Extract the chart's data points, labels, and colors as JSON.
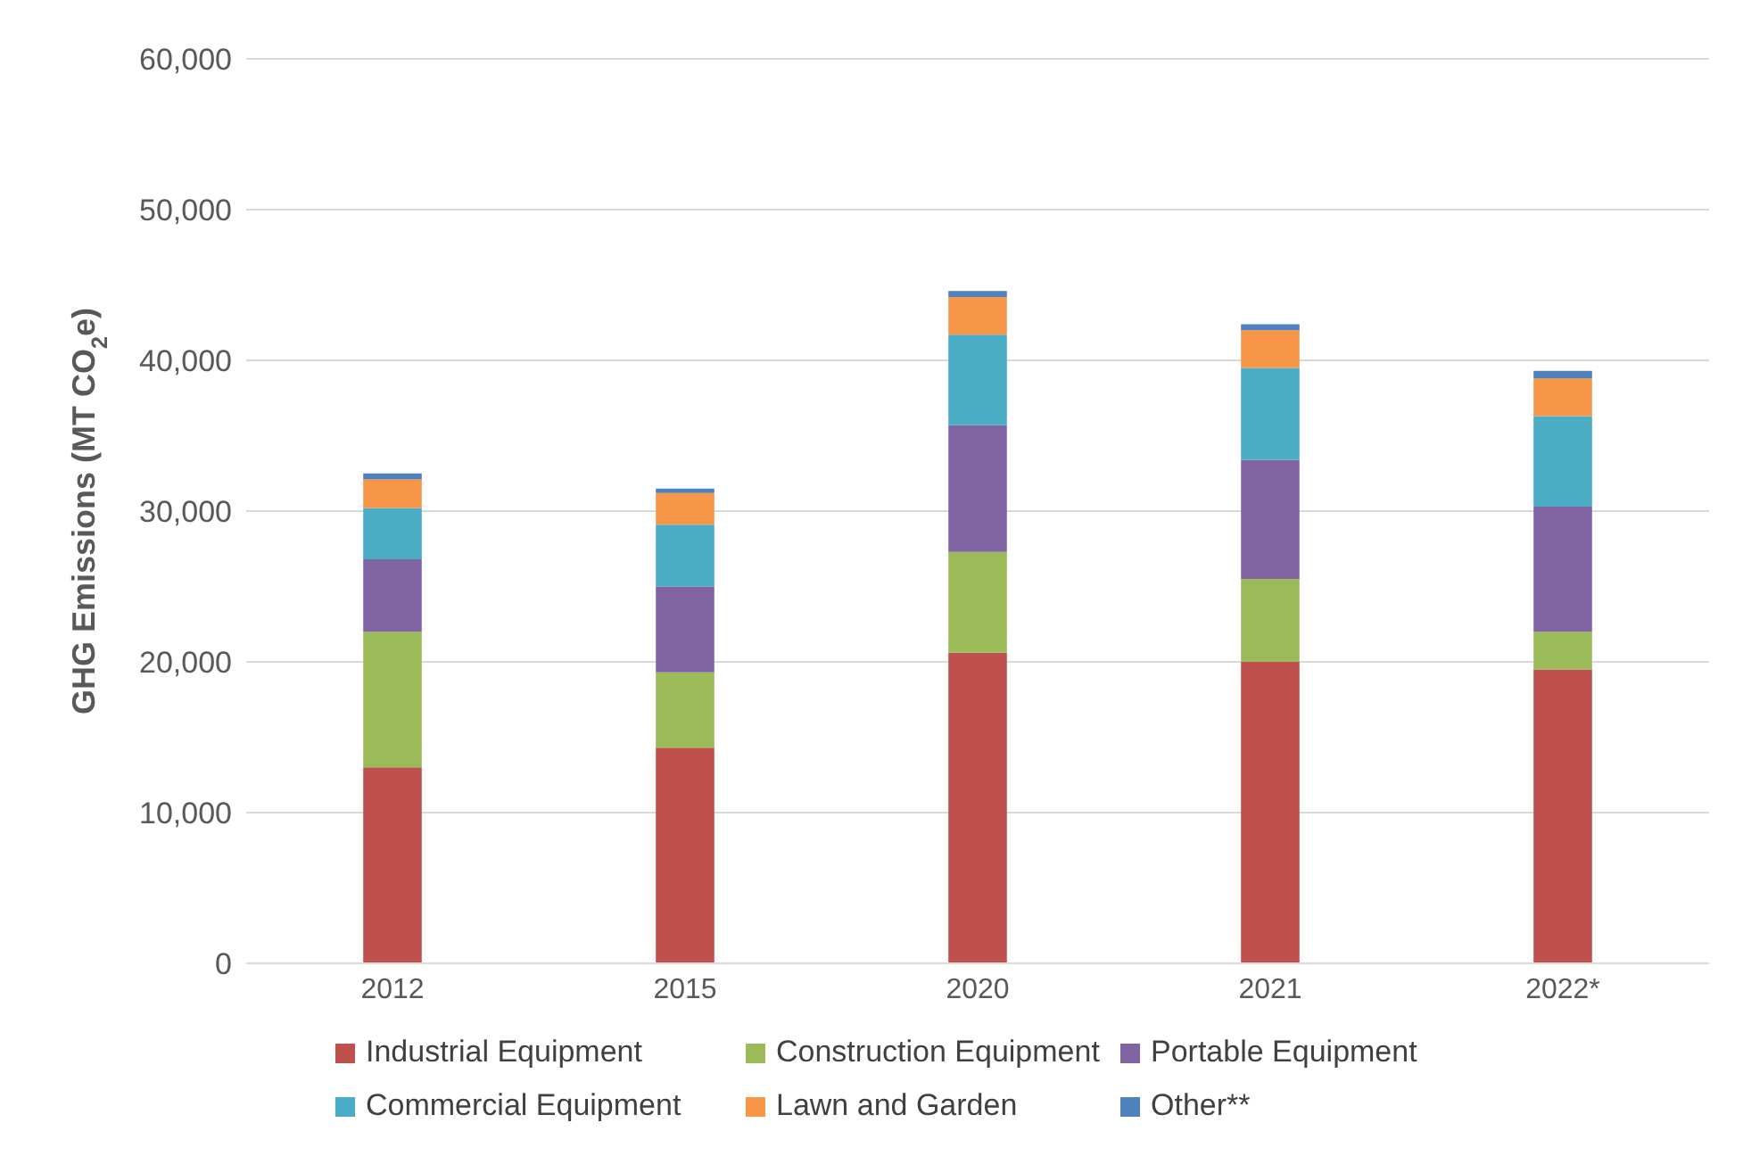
{
  "chart_data": {
    "type": "bar",
    "stacked": true,
    "ylabel": "GHG Emissions (MT CO$_{2}$e)",
    "categories": [
      "2012",
      "2015",
      "2020",
      "2021",
      "2022*"
    ],
    "series": [
      {
        "name": "Industrial Equipment",
        "color": "#c0504d",
        "values": [
          13000,
          14300,
          20600,
          20000,
          19500
        ]
      },
      {
        "name": "Construction Equipment",
        "color": "#9bbb59",
        "values": [
          9000,
          5000,
          6700,
          5500,
          2500
        ]
      },
      {
        "name": "Portable Equipment",
        "color": "#8064a2",
        "values": [
          4800,
          5700,
          8400,
          7900,
          8300
        ]
      },
      {
        "name": "Commercial Equipment",
        "color": "#4bacc6",
        "values": [
          3400,
          4100,
          6000,
          6100,
          6000
        ]
      },
      {
        "name": "Lawn and Garden",
        "color": "#f79646",
        "values": [
          1900,
          2100,
          2500,
          2500,
          2500
        ]
      },
      {
        "name": "Other**",
        "color": "#4f81bd",
        "values": [
          400,
          300,
          400,
          400,
          500
        ]
      }
    ],
    "ylim": [
      0,
      60000
    ],
    "yticks": [
      0,
      {
        "value": 10000,
        "label": "10,000"
      },
      {
        "value": 20000,
        "label": "20,000"
      },
      {
        "value": 30000,
        "label": "30,000"
      },
      {
        "value": 40000,
        "label": "40,000"
      },
      {
        "value": 50000,
        "label": "50,000"
      },
      {
        "value": 60000,
        "label": "60,000"
      }
    ],
    "grid": "y",
    "legend": "bottom"
  }
}
